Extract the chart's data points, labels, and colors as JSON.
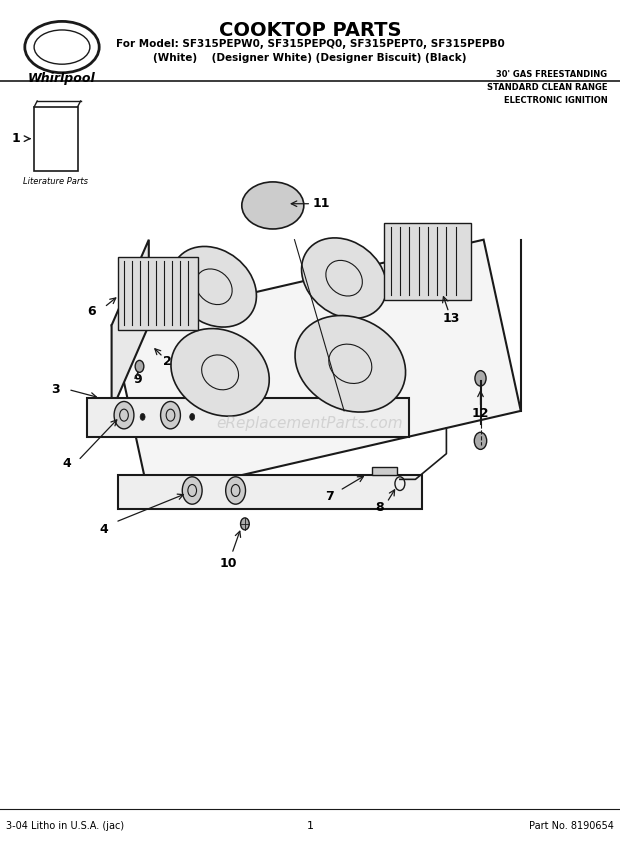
{
  "title": "COOKTOP PARTS",
  "model_line": "For Model: SF315PEPW0, SF315PEPQ0, SF315PEPT0, SF315PEPB0",
  "model_line2": "(White)    (Designer White) (Designer Biscuit) (Black)",
  "side_text": [
    "30' GAS FREESTANDING",
    "STANDARD CLEAN RANGE",
    "ELECTRONIC IGNITION"
  ],
  "footer_left": "3-04 Litho in U.S.A. (jac)",
  "footer_center": "1",
  "footer_right": "Part No. 8190654",
  "whirlpool_text": "Whirlpool",
  "literature_parts": "Literature Parts",
  "bg_color": "#ffffff",
  "line_color": "#1a1a1a",
  "text_color": "#000000",
  "watermark": "eReplacementParts.com"
}
